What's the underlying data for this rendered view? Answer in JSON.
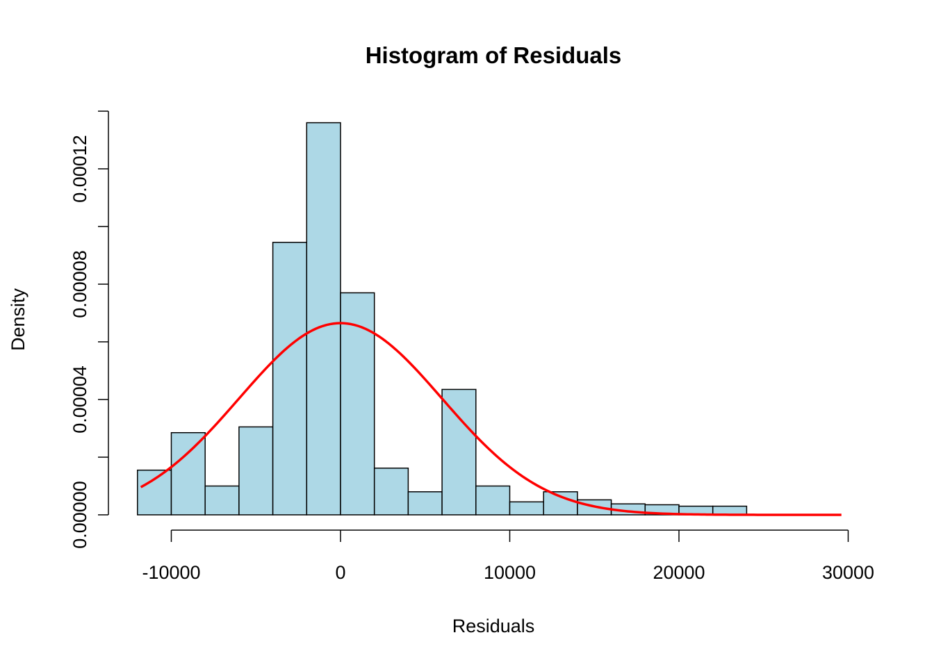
{
  "chart_data": {
    "type": "bar",
    "title": "Histogram of Residuals",
    "xlabel": "Residuals",
    "ylabel": "Density",
    "xlim": [
      -12000,
      30000
    ],
    "ylim": [
      0,
      0.00014
    ],
    "x_ticks": [
      -10000,
      0,
      10000,
      20000,
      30000
    ],
    "x_tick_labels": [
      "-10000",
      "0",
      "10000",
      "20000",
      "30000"
    ],
    "y_ticks": [
      0,
      2e-05,
      4e-05,
      6e-05,
      8e-05,
      0.0001,
      0.00012,
      0.00014
    ],
    "y_tick_labels": [
      "0.00000",
      "",
      "0.00004",
      "",
      "0.00008",
      "",
      "0.00012",
      ""
    ],
    "bin_width": 2000,
    "bins": [
      {
        "x0": -12000,
        "x1": -10000,
        "density": 1.55e-05
      },
      {
        "x0": -10000,
        "x1": -8000,
        "density": 2.85e-05
      },
      {
        "x0": -8000,
        "x1": -6000,
        "density": 1e-05
      },
      {
        "x0": -6000,
        "x1": -4000,
        "density": 3.05e-05
      },
      {
        "x0": -4000,
        "x1": -2000,
        "density": 9.45e-05
      },
      {
        "x0": -2000,
        "x1": 0,
        "density": 0.000136
      },
      {
        "x0": 0,
        "x1": 2000,
        "density": 7.7e-05
      },
      {
        "x0": 2000,
        "x1": 4000,
        "density": 1.62e-05
      },
      {
        "x0": 4000,
        "x1": 6000,
        "density": 8e-06
      },
      {
        "x0": 6000,
        "x1": 8000,
        "density": 4.35e-05
      },
      {
        "x0": 8000,
        "x1": 10000,
        "density": 1e-05
      },
      {
        "x0": 10000,
        "x1": 12000,
        "density": 4.5e-06
      },
      {
        "x0": 12000,
        "x1": 14000,
        "density": 8e-06
      },
      {
        "x0": 14000,
        "x1": 16000,
        "density": 5.2e-06
      },
      {
        "x0": 16000,
        "x1": 18000,
        "density": 3.8e-06
      },
      {
        "x0": 18000,
        "x1": 20000,
        "density": 3.5e-06
      },
      {
        "x0": 20000,
        "x1": 22000,
        "density": 3e-06
      },
      {
        "x0": 22000,
        "x1": 24000,
        "density": 3e-06
      }
    ],
    "normal_curve": {
      "mean": 0,
      "sd": 6000,
      "x_from": -11800,
      "x_to": 29600
    },
    "colors": {
      "bar_fill": "#add8e6",
      "bar_stroke": "#000000",
      "curve": "#ff0000"
    },
    "grid": false,
    "legend": "none"
  }
}
